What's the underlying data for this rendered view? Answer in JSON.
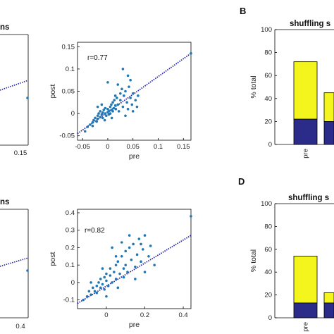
{
  "panel_letters": [
    "B",
    "D"
  ],
  "colors": {
    "point": "#1f77b4",
    "fit": "#2222aa",
    "bar_top": "#f5f51e",
    "bar_bottom": "#2b2b8a"
  },
  "left_cropped": [
    {
      "title": "ns",
      "ticks": [
        "0.15"
      ]
    },
    {
      "title": "ns",
      "ticks": [
        "0.4"
      ]
    }
  ],
  "chart_data": [
    {
      "type": "scatter",
      "xlabel": "pre",
      "ylabel": "post",
      "annotation": "r=0.77",
      "xlim": [
        -0.06,
        0.165
      ],
      "ylim": [
        -0.06,
        0.16
      ],
      "xticks": [
        "-0.05",
        "0",
        "0.05",
        "0.1",
        "0.15"
      ],
      "yticks": [
        "-0.05",
        "0",
        "0.05",
        "0.1",
        "0.15"
      ],
      "xtick_values": [
        -0.05,
        0,
        0.05,
        0.1,
        0.15
      ],
      "ytick_values": [
        -0.05,
        0,
        0.05,
        0.1,
        0.15
      ],
      "fit": {
        "x": [
          -0.06,
          0.165
        ],
        "y": [
          -0.045,
          0.135
        ]
      },
      "points": [
        [
          -0.045,
          -0.04
        ],
        [
          -0.04,
          -0.03
        ],
        [
          -0.035,
          -0.025
        ],
        [
          -0.03,
          -0.028
        ],
        [
          -0.03,
          -0.02
        ],
        [
          -0.028,
          -0.015
        ],
        [
          -0.025,
          -0.01
        ],
        [
          -0.022,
          -0.018
        ],
        [
          -0.02,
          -0.005
        ],
        [
          -0.02,
          -0.012
        ],
        [
          -0.018,
          0.0
        ],
        [
          -0.015,
          -0.008
        ],
        [
          -0.015,
          0.005
        ],
        [
          -0.012,
          -0.002
        ],
        [
          -0.01,
          0.002
        ],
        [
          -0.01,
          -0.01
        ],
        [
          -0.008,
          0.008
        ],
        [
          -0.005,
          0.0
        ],
        [
          -0.005,
          0.012
        ],
        [
          -0.003,
          -0.005
        ],
        [
          0.0,
          0.003
        ],
        [
          0.0,
          0.01
        ],
        [
          0.002,
          -0.002
        ],
        [
          0.003,
          0.006
        ],
        [
          0.005,
          0.015
        ],
        [
          0.005,
          0.0
        ],
        [
          0.007,
          0.02
        ],
        [
          0.008,
          0.008
        ],
        [
          0.01,
          0.005
        ],
        [
          0.01,
          0.025
        ],
        [
          0.012,
          0.012
        ],
        [
          0.013,
          0.03
        ],
        [
          0.015,
          0.018
        ],
        [
          0.016,
          0.01
        ],
        [
          0.018,
          0.035
        ],
        [
          0.02,
          0.02
        ],
        [
          0.022,
          0.005
        ],
        [
          0.025,
          0.03
        ],
        [
          0.025,
          0.045
        ],
        [
          0.03,
          0.015
        ],
        [
          0.032,
          0.04
        ],
        [
          0.035,
          0.05
        ],
        [
          0.038,
          0.025
        ],
        [
          0.04,
          0.01
        ],
        [
          0.042,
          0.06
        ],
        [
          0.045,
          0.035
        ],
        [
          0.048,
          0.02
        ],
        [
          0.05,
          0.045
        ],
        [
          0.05,
          0.005
        ],
        [
          0.055,
          0.03
        ],
        [
          0.058,
          0.015
        ],
        [
          0.06,
          0.04
        ],
        [
          0.03,
          0.1
        ],
        [
          0.04,
          0.085
        ],
        [
          0.0,
          0.07
        ],
        [
          0.02,
          0.065
        ],
        [
          0.165,
          0.135
        ],
        [
          -0.02,
          0.015
        ],
        [
          0.015,
          0.04
        ],
        [
          0.035,
          -0.005
        ],
        [
          -0.012,
          0.02
        ],
        [
          0.008,
          -0.01
        ],
        [
          0.028,
          0.055
        ],
        [
          0.045,
          0.075
        ],
        [
          -0.006,
          -0.015
        ]
      ]
    },
    {
      "type": "bar",
      "title": "shuffling s",
      "ylabel": "% total",
      "ylim": [
        0,
        100
      ],
      "yticks": [
        "0",
        "20",
        "40",
        "60",
        "80",
        "100"
      ],
      "ytick_values": [
        0,
        20,
        40,
        60,
        80,
        100
      ],
      "categories": [
        "pre",
        ""
      ],
      "stacks": [
        {
          "bottom": 22,
          "total": 72
        },
        {
          "bottom": 20,
          "total": 45
        }
      ]
    },
    {
      "type": "scatter",
      "xlabel": "pre",
      "ylabel": "post",
      "annotation": "r=0.82",
      "xlim": [
        -0.15,
        0.44
      ],
      "ylim": [
        -0.15,
        0.42
      ],
      "xticks": [
        "0",
        "0.2",
        "0.4"
      ],
      "yticks": [
        "-0.1",
        "0",
        "0.1",
        "0.2",
        "0.3",
        "0.4"
      ],
      "xtick_values": [
        0,
        0.2,
        0.4
      ],
      "ytick_values": [
        -0.1,
        0,
        0.1,
        0.2,
        0.3,
        0.4
      ],
      "fit": {
        "x": [
          -0.15,
          0.44
        ],
        "y": [
          -0.12,
          0.27
        ]
      },
      "points": [
        [
          -0.12,
          -0.1
        ],
        [
          -0.1,
          -0.08
        ],
        [
          -0.09,
          -0.05
        ],
        [
          -0.08,
          -0.07
        ],
        [
          -0.07,
          -0.03
        ],
        [
          -0.06,
          -0.05
        ],
        [
          -0.05,
          -0.02
        ],
        [
          -0.05,
          -0.06
        ],
        [
          -0.04,
          0.0
        ],
        [
          -0.03,
          -0.03
        ],
        [
          -0.03,
          0.02
        ],
        [
          -0.02,
          -0.01
        ],
        [
          -0.01,
          0.03
        ],
        [
          -0.01,
          -0.04
        ],
        [
          0.0,
          0.01
        ],
        [
          0.0,
          0.05
        ],
        [
          0.01,
          -0.02
        ],
        [
          0.02,
          0.04
        ],
        [
          0.02,
          0.08
        ],
        [
          0.03,
          0.0
        ],
        [
          0.04,
          0.06
        ],
        [
          0.05,
          0.1
        ],
        [
          0.05,
          0.02
        ],
        [
          0.06,
          0.12
        ],
        [
          0.07,
          0.05
        ],
        [
          0.08,
          0.15
        ],
        [
          0.09,
          0.08
        ],
        [
          0.1,
          0.18
        ],
        [
          0.1,
          0.1
        ],
        [
          0.11,
          0.06
        ],
        [
          0.12,
          0.2
        ],
        [
          0.13,
          0.13
        ],
        [
          0.14,
          0.22
        ],
        [
          0.15,
          0.09
        ],
        [
          0.16,
          0.16
        ],
        [
          0.17,
          0.25
        ],
        [
          0.18,
          0.12
        ],
        [
          0.19,
          0.19
        ],
        [
          0.2,
          0.27
        ],
        [
          0.2,
          0.06
        ],
        [
          0.22,
          0.15
        ],
        [
          0.23,
          0.21
        ],
        [
          0.25,
          0.1
        ],
        [
          0.03,
          0.2
        ],
        [
          0.08,
          0.23
        ],
        [
          0.12,
          0.27
        ],
        [
          0.44,
          0.38
        ],
        [
          -0.02,
          0.08
        ],
        [
          0.06,
          -0.03
        ],
        [
          0.15,
          0.02
        ],
        [
          -0.08,
          0.0
        ],
        [
          0.0,
          -0.08
        ],
        [
          0.09,
          0.03
        ],
        [
          0.18,
          0.22
        ],
        [
          0.05,
          0.15
        ]
      ]
    },
    {
      "type": "bar",
      "title": "shuffling s",
      "ylabel": "% total",
      "ylim": [
        0,
        100
      ],
      "yticks": [
        "0",
        "20",
        "40",
        "60",
        "80",
        "100"
      ],
      "ytick_values": [
        0,
        20,
        40,
        60,
        80,
        100
      ],
      "categories": [
        "pre",
        ""
      ],
      "stacks": [
        {
          "bottom": 13,
          "total": 54
        },
        {
          "bottom": 13,
          "total": 22
        }
      ]
    }
  ]
}
